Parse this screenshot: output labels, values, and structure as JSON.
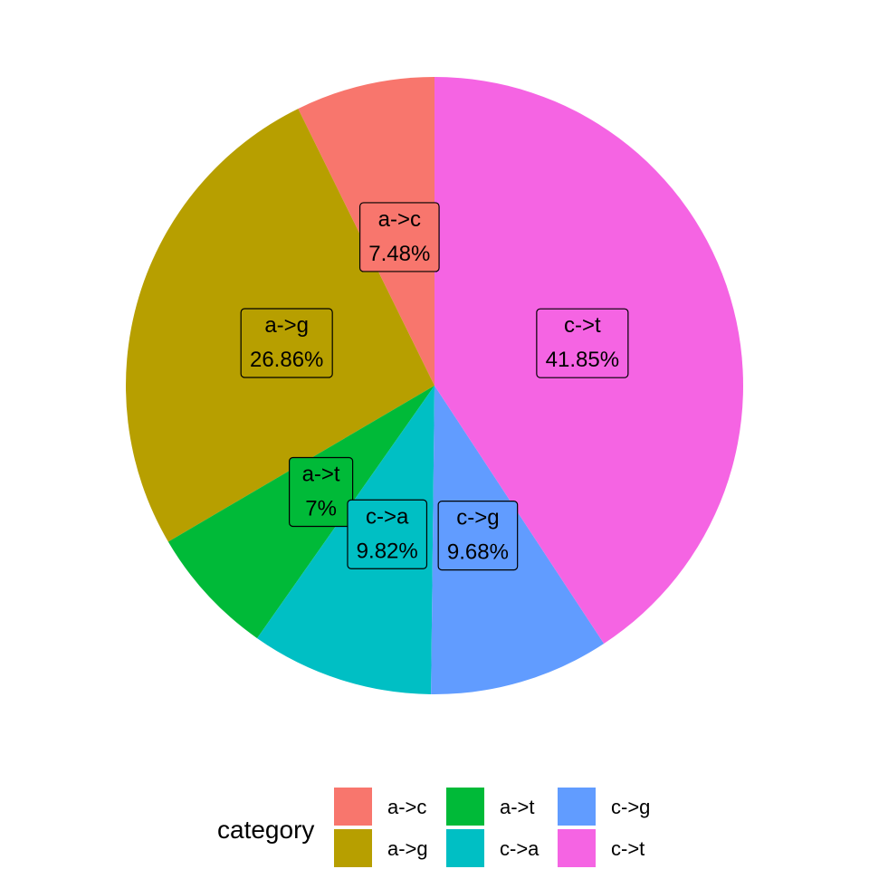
{
  "chart_data": {
    "type": "pie",
    "legend": {
      "title": "category",
      "placement": "bottom"
    },
    "slices": [
      {
        "label": "a->c",
        "percent_label": "7.48%",
        "value": 7.48,
        "color": "#F8766D"
      },
      {
        "label": "a->g",
        "percent_label": "26.86%",
        "value": 26.86,
        "color": "#B79F00"
      },
      {
        "label": "a->t",
        "percent_label": "7%",
        "value": 7.0,
        "color": "#00BA38"
      },
      {
        "label": "c->a",
        "percent_label": "9.82%",
        "value": 9.82,
        "color": "#00BFC4"
      },
      {
        "label": "c->g",
        "percent_label": "9.68%",
        "value": 9.68,
        "color": "#619CFF"
      },
      {
        "label": "c->t",
        "percent_label": "41.85%",
        "value": 41.85,
        "color": "#F564E3"
      }
    ]
  }
}
